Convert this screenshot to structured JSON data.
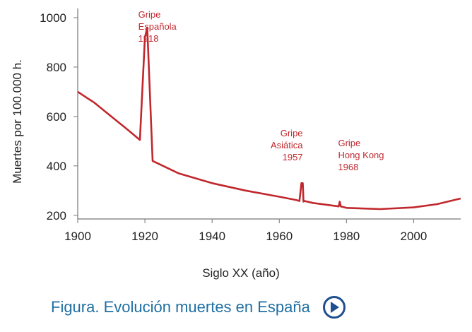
{
  "chart_data": {
    "type": "line",
    "ylabel": "Muertes por 100.000 h.",
    "xlabel": "Siglo XX (año)",
    "xlim": [
      1900,
      2014
    ],
    "ylim": [
      185,
      1020
    ],
    "x_ticks": [
      "1900",
      "1920",
      "1940",
      "1960",
      "1980",
      "2000"
    ],
    "y_ticks": [
      "200",
      "400",
      "600",
      "800",
      "1000"
    ],
    "grid": false,
    "color": "#c0282d",
    "series": [
      {
        "x": [
          1900,
          1905,
          1910,
          1915,
          1918.5,
          1920,
          1920.7,
          1922.3,
          1930,
          1940,
          1950,
          1960,
          1965,
          1966,
          1966.6,
          1967,
          1967.2,
          1967.5,
          1970,
          1977.7,
          1978,
          1978.3,
          1980,
          1990,
          2000,
          2007,
          2014
        ],
        "y": [
          700,
          655,
          600,
          545,
          505,
          920,
          960,
          420,
          370,
          330,
          300,
          275,
          262,
          258,
          330,
          330,
          255,
          258,
          250,
          236,
          255,
          236,
          230,
          225,
          232,
          245,
          268
        ]
      }
    ],
    "annotations": [
      {
        "lines": [
          "Gripe",
          "Española",
          "1918"
        ],
        "x": 1918,
        "y": 1000,
        "align": "start"
      },
      {
        "lines": [
          "Gripe",
          "Asiática",
          "1957"
        ],
        "x": 1967,
        "y": 520,
        "align": "end"
      },
      {
        "lines": [
          "Gripe",
          "Hong Kong",
          "1968"
        ],
        "x": 1977.5,
        "y": 480,
        "align": "start"
      }
    ]
  },
  "caption": {
    "text": "Figura. Evolución muertes en España",
    "play_icon": "play-circle-icon",
    "accent": "#1f6fa3"
  }
}
